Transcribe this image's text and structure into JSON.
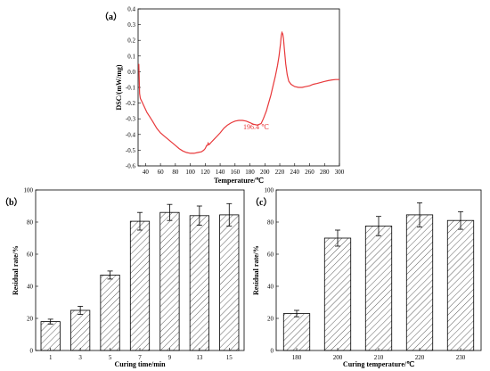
{
  "chart_data": [
    {
      "id": "a",
      "type": "line",
      "panel_label": "（a）",
      "xlabel": "Temperature/℃",
      "ylabel": "DSC/(mW/mg)",
      "xlim": [
        30,
        300
      ],
      "ylim": [
        -0.6,
        0.4
      ],
      "x_ticks": [
        40,
        60,
        80,
        100,
        120,
        140,
        160,
        180,
        200,
        220,
        240,
        260,
        280,
        300
      ],
      "y_ticks": [
        -0.6,
        -0.5,
        -0.4,
        -0.3,
        -0.2,
        -0.1,
        0.0,
        0.1,
        0.2,
        0.3,
        0.4
      ],
      "y_tick_labels": [
        "-0.6",
        "-0.5",
        "-0.4",
        "-0.3",
        "-0.2",
        "-0.1",
        "0.0",
        "0.1",
        "0.2",
        "0.3",
        "0.4"
      ],
      "annotation": "196.4 ℃",
      "series_color": "#e8383a",
      "x": [
        31,
        32,
        33,
        35,
        38,
        42,
        46,
        50,
        55,
        60,
        65,
        70,
        75,
        80,
        85,
        90,
        95,
        100,
        105,
        110,
        115,
        118,
        120,
        122,
        123,
        124,
        125,
        126,
        128,
        132,
        136,
        140,
        145,
        150,
        155,
        160,
        165,
        170,
        175,
        180,
        185,
        190,
        195,
        198,
        202,
        205,
        208,
        211,
        214,
        217,
        219,
        221,
        222,
        223,
        224,
        225,
        226,
        228,
        230,
        232,
        235,
        240,
        245,
        250,
        255,
        260,
        265,
        270,
        275,
        280,
        285,
        290,
        295,
        300
      ],
      "y": [
        0.05,
        -0.14,
        -0.17,
        -0.19,
        -0.22,
        -0.26,
        -0.29,
        -0.32,
        -0.36,
        -0.39,
        -0.41,
        -0.43,
        -0.45,
        -0.47,
        -0.49,
        -0.505,
        -0.515,
        -0.52,
        -0.52,
        -0.515,
        -0.51,
        -0.5,
        -0.49,
        -0.47,
        -0.47,
        -0.455,
        -0.465,
        -0.46,
        -0.45,
        -0.43,
        -0.41,
        -0.39,
        -0.36,
        -0.34,
        -0.325,
        -0.315,
        -0.31,
        -0.31,
        -0.315,
        -0.325,
        -0.335,
        -0.34,
        -0.33,
        -0.3,
        -0.25,
        -0.2,
        -0.15,
        -0.09,
        -0.03,
        0.04,
        0.1,
        0.18,
        0.23,
        0.25,
        0.24,
        0.21,
        0.15,
        0.05,
        -0.02,
        -0.06,
        -0.08,
        -0.095,
        -0.1,
        -0.1,
        -0.095,
        -0.09,
        -0.08,
        -0.075,
        -0.068,
        -0.062,
        -0.057,
        -0.052,
        -0.05,
        -0.05
      ]
    },
    {
      "id": "b",
      "type": "bar",
      "panel_label": "（b）",
      "xlabel": "Curing time/min",
      "ylabel": "Residual rate/%",
      "categories": [
        "1",
        "3",
        "5",
        "7",
        "9",
        "13",
        "15"
      ],
      "values": [
        18,
        25,
        47,
        80.5,
        86,
        84,
        84.5
      ],
      "errors": [
        1.5,
        2.5,
        2.5,
        5.5,
        5,
        6,
        7
      ],
      "ylim": [
        0,
        100
      ],
      "y_ticks": [
        0,
        20,
        40,
        60,
        80,
        100
      ],
      "bar_fill": "hatched"
    },
    {
      "id": "c",
      "type": "bar",
      "panel_label": "（c）",
      "xlabel": "Curing temperature/℃",
      "ylabel": "Residual rate/%",
      "categories": [
        "180",
        "200",
        "210",
        "220",
        "230"
      ],
      "values": [
        23,
        70,
        77.5,
        84.5,
        81
      ],
      "errors": [
        2,
        5,
        6,
        7.5,
        5.5
      ],
      "ylim": [
        0,
        100
      ],
      "y_ticks": [
        0,
        20,
        40,
        60,
        80,
        100
      ],
      "bar_fill": "hatched"
    }
  ]
}
